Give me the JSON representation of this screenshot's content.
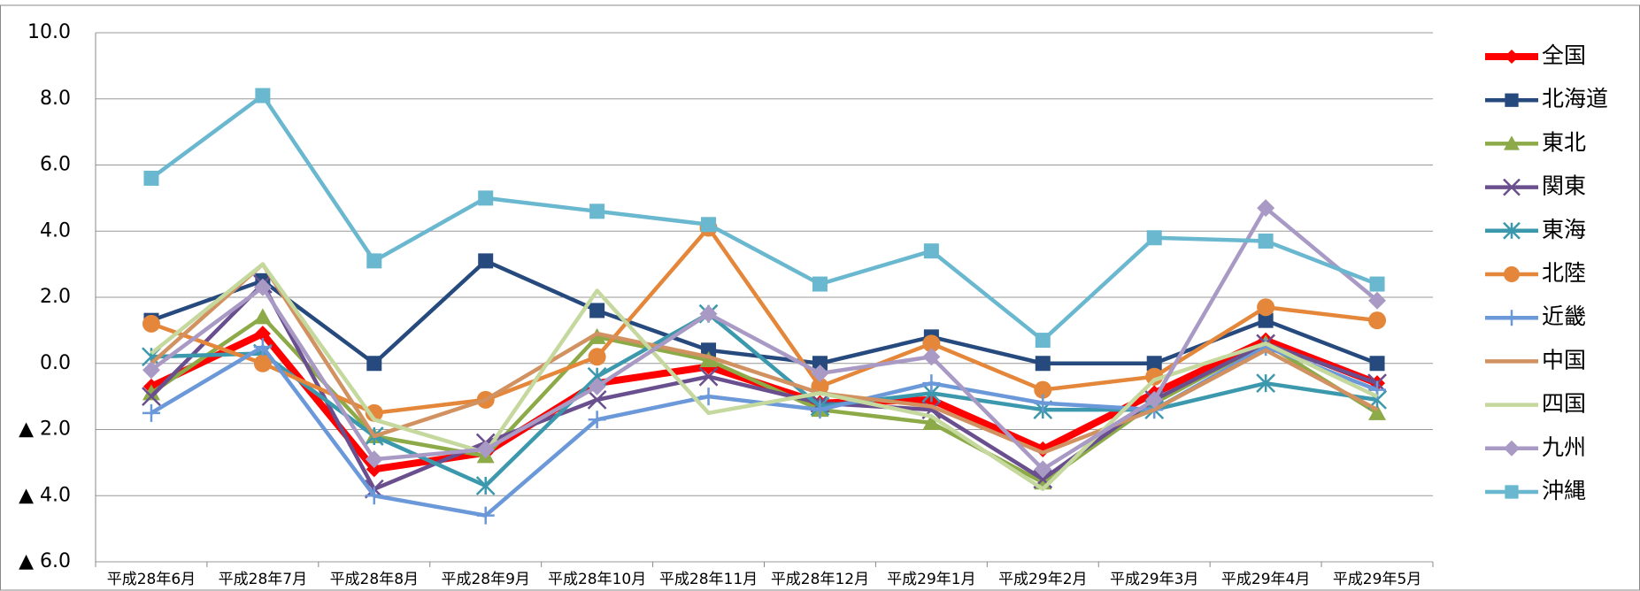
{
  "chart_data": {
    "type": "line",
    "categories": [
      "平成28年6月",
      "平成28年7月",
      "平成28年8月",
      "平成28年9月",
      "平成28年10月",
      "平成28年11月",
      "平成28年12月",
      "平成29年1月",
      "平成29年2月",
      "平成29年3月",
      "平成29年4月",
      "平成29年5月"
    ],
    "ylim": [
      -6,
      10
    ],
    "yticks": [
      {
        "value": -6,
        "label": "▲ 6.0"
      },
      {
        "value": -4,
        "label": "▲ 4.0"
      },
      {
        "value": -2,
        "label": "▲ 2.0"
      },
      {
        "value": 0,
        "label": "0.0"
      },
      {
        "value": 2,
        "label": "2.0"
      },
      {
        "value": 4,
        "label": "4.0"
      },
      {
        "value": 6,
        "label": "6.0"
      },
      {
        "value": 8,
        "label": "8.0"
      },
      {
        "value": 10,
        "label": "10.0"
      }
    ],
    "grid": true,
    "legend": "right",
    "series": [
      {
        "name": "全国",
        "color": "#ff0000",
        "marker": "diamond",
        "values": [
          -0.7,
          0.9,
          -3.2,
          -2.7,
          -0.6,
          -0.1,
          -1.2,
          -1.1,
          -2.6,
          -0.9,
          0.7,
          -0.6
        ]
      },
      {
        "name": "北海道",
        "color": "#264a7e",
        "marker": "square",
        "values": [
          1.3,
          2.5,
          0.0,
          3.1,
          1.6,
          0.4,
          0.0,
          0.8,
          0.0,
          0.0,
          1.3,
          0.0
        ]
      },
      {
        "name": "東北",
        "color": "#8caa47",
        "marker": "triangle",
        "values": [
          -0.9,
          1.4,
          -2.2,
          -2.8,
          0.8,
          0.1,
          -1.4,
          -1.8,
          -3.6,
          -1.2,
          0.6,
          -1.5
        ]
      },
      {
        "name": "関東",
        "color": "#6a4f8e",
        "marker": "x",
        "values": [
          -1.0,
          2.4,
          -3.8,
          -2.4,
          -1.1,
          -0.4,
          -1.2,
          -1.4,
          -3.5,
          -1.1,
          0.6,
          -0.6
        ]
      },
      {
        "name": "東海",
        "color": "#3c99ad",
        "marker": "star",
        "values": [
          0.2,
          0.3,
          -2.2,
          -3.7,
          -0.4,
          1.5,
          -1.3,
          -0.9,
          -1.4,
          -1.4,
          -0.6,
          -1.1
        ]
      },
      {
        "name": "北陸",
        "color": "#e4873a",
        "marker": "circle",
        "values": [
          1.2,
          0.0,
          -1.5,
          -1.1,
          0.2,
          4.1,
          -0.7,
          0.6,
          -0.8,
          -0.4,
          1.7,
          1.3
        ]
      },
      {
        "name": "近畿",
        "color": "#6a98d8",
        "marker": "plus",
        "values": [
          -1.5,
          0.5,
          -4.0,
          -4.6,
          -1.7,
          -1.0,
          -1.4,
          -0.6,
          -1.2,
          -1.4,
          0.5,
          -0.8
        ]
      },
      {
        "name": "中国",
        "color": "#d19160",
        "marker": "none",
        "values": [
          0.0,
          3.0,
          -2.2,
          -1.1,
          0.9,
          0.2,
          -0.9,
          -1.3,
          -2.7,
          -1.4,
          0.4,
          -1.4
        ]
      },
      {
        "name": "四国",
        "color": "#c5d89e",
        "marker": "none",
        "values": [
          0.3,
          3.0,
          -1.7,
          -2.7,
          2.2,
          -1.5,
          -0.9,
          -1.6,
          -3.8,
          -0.5,
          0.6,
          -1.0
        ]
      },
      {
        "name": "九州",
        "color": "#a99ac5",
        "marker": "diamond",
        "values": [
          -0.2,
          2.3,
          -2.9,
          -2.6,
          -0.7,
          1.5,
          -0.3,
          0.2,
          -3.2,
          -1.1,
          4.7,
          1.9
        ]
      },
      {
        "name": "沖縄",
        "color": "#6ab8d0",
        "marker": "square",
        "values": [
          5.6,
          8.1,
          3.1,
          5.0,
          4.6,
          4.2,
          2.4,
          3.4,
          0.7,
          3.8,
          3.7,
          2.4
        ]
      }
    ]
  }
}
